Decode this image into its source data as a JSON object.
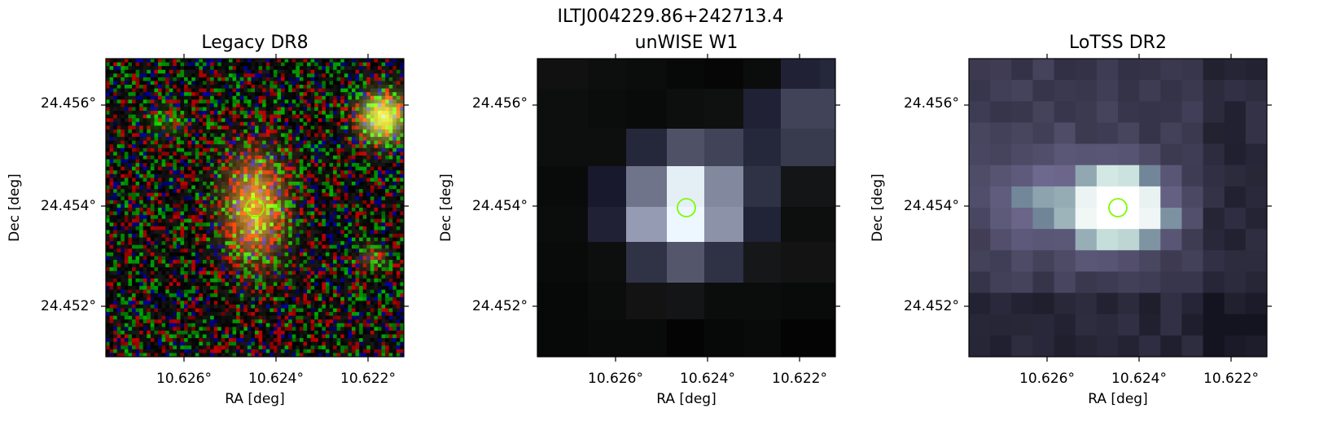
{
  "figure": {
    "suptitle": "ILTJ004229.86+242713.4"
  },
  "panels": [
    {
      "title": "Legacy DR8",
      "xlabel": "RA [deg]",
      "ylabel": "Dec [deg]",
      "xticks": [
        "10.626°",
        "10.624°",
        "10.622°"
      ],
      "yticks": [
        "24.456°",
        "24.454°",
        "24.452°"
      ],
      "kind": "optical-noise"
    },
    {
      "title": "unWISE W1",
      "xlabel": "RA [deg]",
      "ylabel": "Dec [deg]",
      "xticks": [
        "10.626°",
        "10.624°",
        "10.622°"
      ],
      "yticks": [
        "24.456°",
        "24.454°",
        "24.452°"
      ],
      "kind": "infrared-coarse"
    },
    {
      "title": "LoTSS DR2",
      "xlabel": "RA [deg]",
      "ylabel": "Dec [deg]",
      "xticks": [
        "10.626°",
        "10.624°",
        "10.622°"
      ],
      "yticks": [
        "24.456°",
        "24.454°",
        "24.452°"
      ],
      "kind": "radio-purple"
    }
  ],
  "colors": {
    "marker": "#7cfc00",
    "axes": "#000000",
    "background": "#ffffff"
  }
}
